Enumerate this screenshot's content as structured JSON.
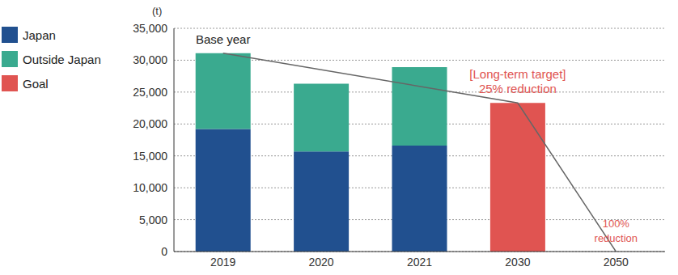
{
  "chart_data": {
    "type": "bar",
    "stacked": true,
    "y_label": "(t)",
    "categories": [
      "2019",
      "2020",
      "2021",
      "2030",
      "2050"
    ],
    "series": [
      {
        "name": "Japan",
        "color": "#21508f",
        "values": [
          19200,
          15700,
          16600,
          null,
          null
        ]
      },
      {
        "name": "Outside Japan",
        "color": "#3aaa8f",
        "values": [
          11900,
          10600,
          12300,
          null,
          null
        ]
      },
      {
        "name": "Goal",
        "color": "#e05451",
        "values": [
          null,
          null,
          null,
          23300,
          0
        ]
      }
    ],
    "base_year": "2019",
    "annotations": [
      {
        "category": "2019",
        "text": [
          "Base year"
        ],
        "color": "#222222"
      },
      {
        "category": "2030",
        "text": [
          "[Long-term target]",
          "25% reduction"
        ],
        "color": "#e05451"
      },
      {
        "category": "2050",
        "text": [
          "100%",
          "reduction"
        ],
        "color": "#e05451"
      }
    ],
    "ylim": [
      0,
      35000
    ],
    "yticks": [
      0,
      {
        "value": 5000,
        "label": "5,000"
      },
      {
        "value": 10000,
        "label": "10,000"
      },
      {
        "value": 15000,
        "label": "15,000"
      },
      {
        "value": 20000,
        "label": "20,000"
      },
      {
        "value": 25000,
        "label": "25,000"
      },
      {
        "value": 30000,
        "label": "30,000"
      },
      {
        "value": 35000,
        "label": "35,000"
      }
    ],
    "grid": true
  }
}
